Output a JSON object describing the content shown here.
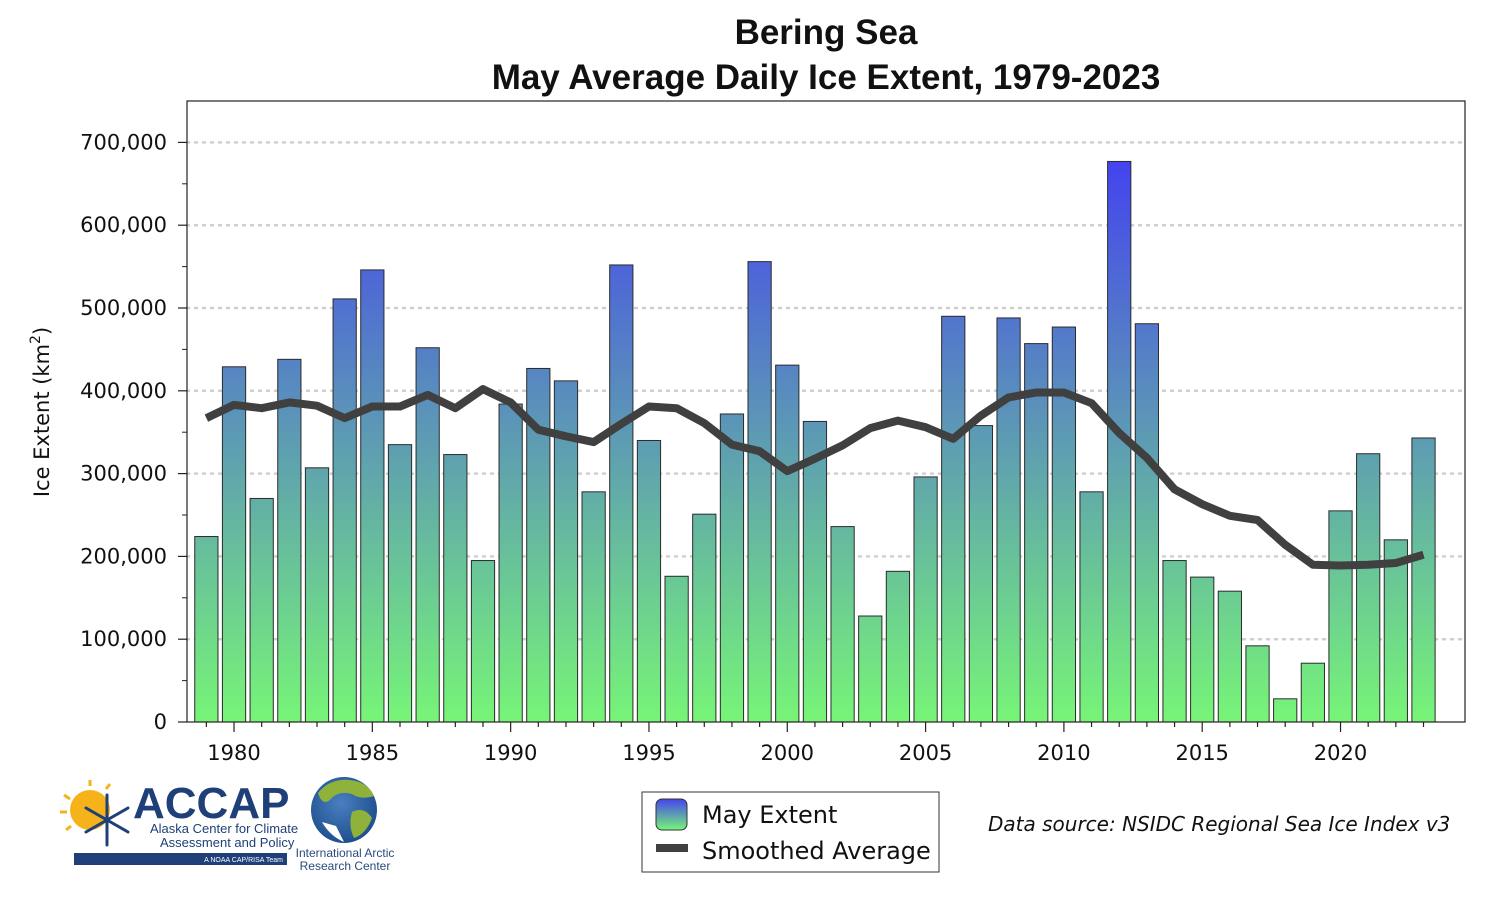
{
  "chart_data": {
    "type": "bar",
    "title": "Bering Sea",
    "subtitle": "May Average Daily Ice Extent, 1979-2023",
    "ylabel": "Ice Extent (km",
    "ylabel_sup": "2",
    "ylabel_close": ")",
    "xlabel": "",
    "ylim": [
      0,
      750000
    ],
    "xlim": [
      1978.3,
      2024.5
    ],
    "y_ticks": [
      0,
      100000,
      200000,
      300000,
      400000,
      500000,
      600000,
      700000
    ],
    "y_tick_labels": [
      "0",
      "100,000",
      "200,000",
      "300,000",
      "400,000",
      "500,000",
      "600,000",
      "700,000"
    ],
    "x_ticks": [
      1980,
      1985,
      1990,
      1995,
      2000,
      2005,
      2010,
      2015,
      2020
    ],
    "x_tick_labels": [
      "1980",
      "1985",
      "1990",
      "1995",
      "2000",
      "2005",
      "2010",
      "2015",
      "2020"
    ],
    "grid": "horizontal dotted",
    "legend_position": "bottom-center",
    "categories": [
      1979,
      1980,
      1981,
      1982,
      1983,
      1984,
      1985,
      1986,
      1987,
      1988,
      1989,
      1990,
      1991,
      1992,
      1993,
      1994,
      1995,
      1996,
      1997,
      1998,
      1999,
      2000,
      2001,
      2002,
      2003,
      2004,
      2005,
      2006,
      2007,
      2008,
      2009,
      2010,
      2011,
      2012,
      2013,
      2014,
      2015,
      2016,
      2017,
      2018,
      2019,
      2020,
      2021,
      2022,
      2023
    ],
    "series": [
      {
        "name": "May Extent",
        "kind": "bar",
        "colors": {
          "top": "#4444ee",
          "bottom": "#77f577"
        },
        "values": [
          224000,
          429000,
          270000,
          438000,
          307000,
          511000,
          546000,
          335000,
          452000,
          323000,
          195000,
          384000,
          427000,
          412000,
          278000,
          552000,
          340000,
          176000,
          251000,
          372000,
          556000,
          431000,
          363000,
          236000,
          128000,
          182000,
          296000,
          490000,
          358000,
          488000,
          457000,
          477000,
          278000,
          677000,
          481000,
          195000,
          175000,
          158000,
          92000,
          28000,
          71000,
          255000,
          324000,
          220000,
          343000
        ]
      },
      {
        "name": "Smoothed Average",
        "kind": "line",
        "color": "#404040",
        "values": [
          367000,
          383000,
          379000,
          386000,
          382000,
          367000,
          381000,
          381000,
          395000,
          379000,
          402000,
          386000,
          353000,
          345000,
          338000,
          360000,
          381000,
          379000,
          361000,
          335000,
          327000,
          303000,
          318000,
          334000,
          355000,
          364000,
          356000,
          342000,
          370000,
          392000,
          398000,
          398000,
          385000,
          349000,
          319000,
          281000,
          263000,
          249000,
          244000,
          214000,
          190000,
          189000,
          190000,
          192000,
          202000
        ]
      }
    ],
    "source_note": "Data source: NSIDC Regional Sea Ice Index v3"
  },
  "logos": {
    "accap": {
      "name": "ACCAP",
      "line1": "Alaska Center for Climate",
      "line2": "Assessment and Policy",
      "tagline": "A NOAA CAP/RISA Team"
    },
    "iarc": {
      "line1": "International Arctic",
      "line2": "Research Center"
    }
  }
}
